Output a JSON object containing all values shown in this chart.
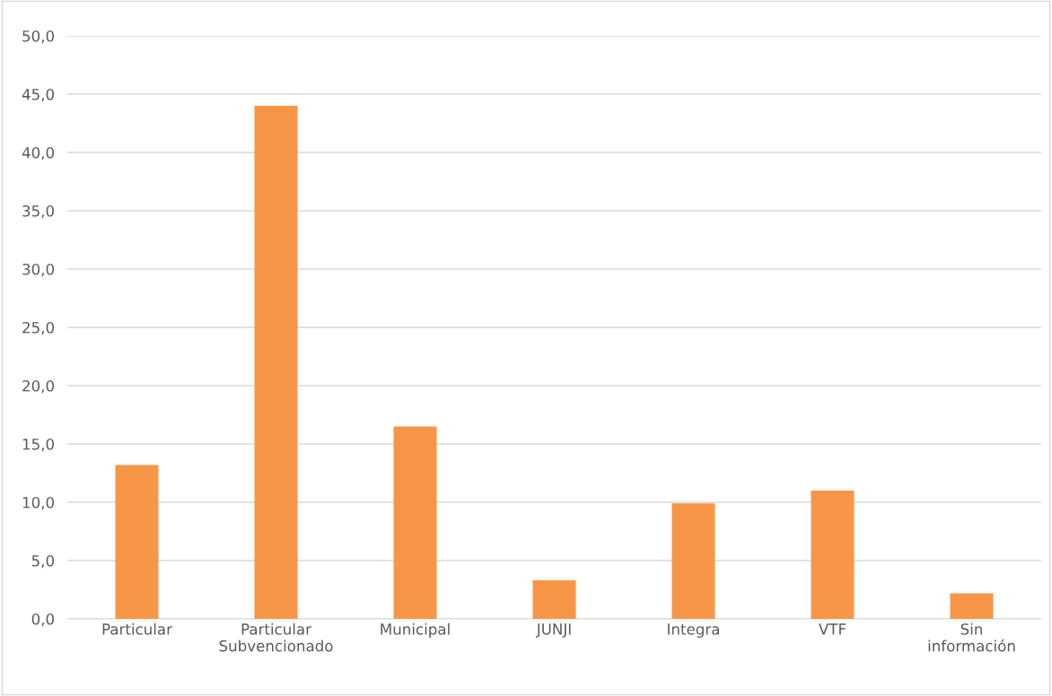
{
  "chart_data": {
    "type": "bar",
    "categories": [
      "Particular",
      "Particular\nSubvencionado",
      "Municipal",
      "JUNJI",
      "Integra",
      "VTF",
      "Sin\ninformación"
    ],
    "values": [
      13.2,
      44.0,
      16.5,
      3.3,
      9.9,
      11.0,
      2.2
    ],
    "color": "#f79646",
    "ylim": [
      0,
      50
    ],
    "yticks": [
      {
        "value": 0,
        "label": "0,0"
      },
      {
        "value": 5,
        "label": "5,0"
      },
      {
        "value": 10,
        "label": "10,0"
      },
      {
        "value": 15,
        "label": "15,0"
      },
      {
        "value": 20,
        "label": "20,0"
      },
      {
        "value": 25,
        "label": "25,0"
      },
      {
        "value": 30,
        "label": "30,0"
      },
      {
        "value": 35,
        "label": "35,0"
      },
      {
        "value": 40,
        "label": "40,0"
      },
      {
        "value": 45,
        "label": "45,0"
      },
      {
        "value": 50,
        "label": "50,0"
      }
    ],
    "grid": "y"
  }
}
